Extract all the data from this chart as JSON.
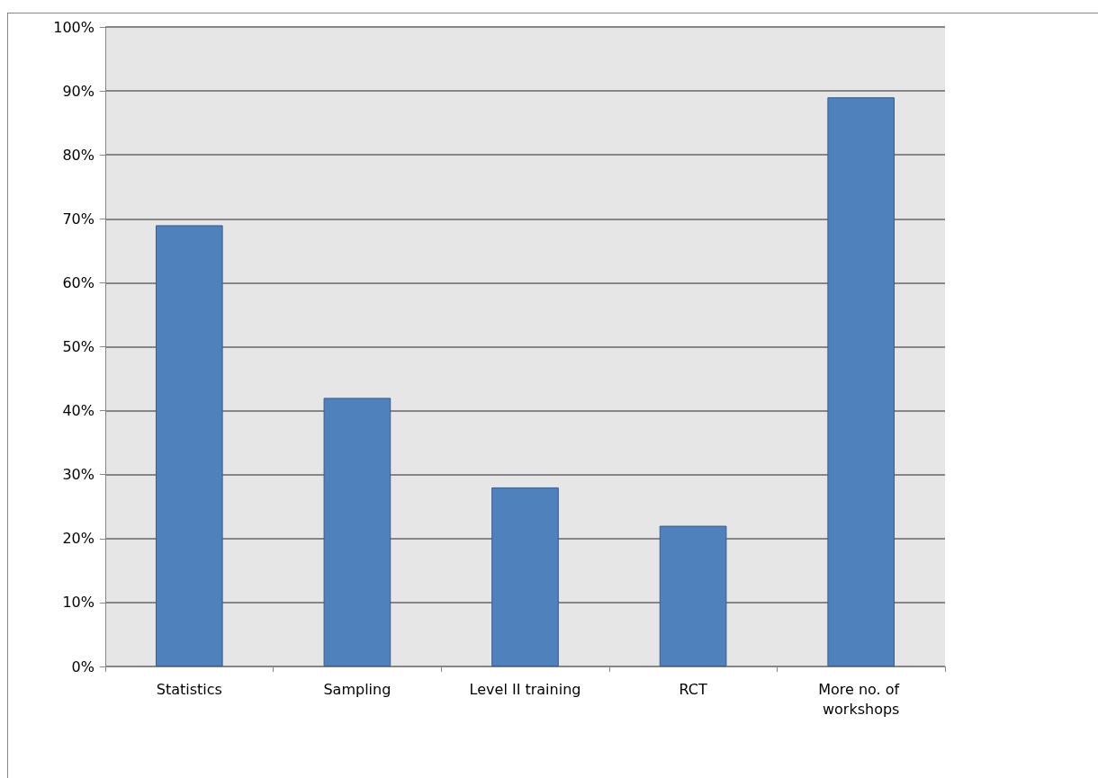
{
  "chart_data": {
    "type": "bar",
    "categories": [
      "Statistics",
      "Sampling",
      "Level II training",
      "RCT",
      "More no. of workshops"
    ],
    "values": [
      69,
      42,
      28,
      22,
      89
    ],
    "color": "#4f81bd",
    "ylim": [
      0,
      100
    ],
    "yticks": [
      {
        "value": 0,
        "label": "0%"
      },
      {
        "value": 10,
        "label": "10%"
      },
      {
        "value": 20,
        "label": "20%"
      },
      {
        "value": 30,
        "label": "30%"
      },
      {
        "value": 40,
        "label": "40%"
      },
      {
        "value": 50,
        "label": "50%"
      },
      {
        "value": 60,
        "label": "60%"
      },
      {
        "value": 70,
        "label": "70%"
      },
      {
        "value": 80,
        "label": "80%"
      },
      {
        "value": 90,
        "label": "90%"
      },
      {
        "value": 100,
        "label": "100%"
      }
    ],
    "grid": "y"
  }
}
